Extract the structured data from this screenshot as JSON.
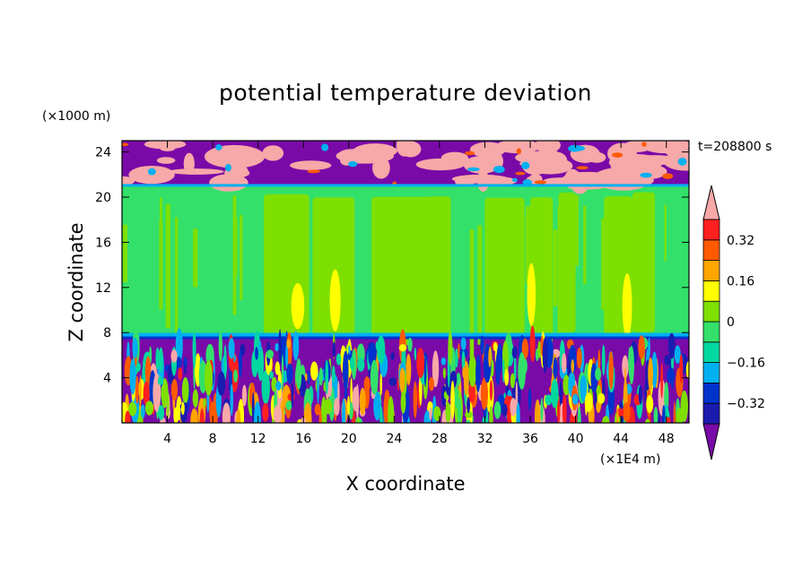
{
  "chart_data": {
    "type": "heatmap",
    "title": "potential temperature deviation",
    "xlabel": "X coordinate",
    "ylabel": "Z coordinate",
    "x_unit": "(×1E4 m)",
    "y_unit": "(×1000 m)",
    "time_label": "t=208800 s",
    "xlim": [
      0,
      50
    ],
    "ylim": [
      0,
      25
    ],
    "x_ticks": [
      "4",
      "8",
      "12",
      "16",
      "20",
      "24",
      "28",
      "32",
      "36",
      "40",
      "44",
      "48"
    ],
    "x_tick_values": [
      4,
      8,
      12,
      16,
      20,
      24,
      28,
      32,
      36,
      40,
      44,
      48
    ],
    "y_ticks": [
      "4",
      "8",
      "12",
      "16",
      "20",
      "24"
    ],
    "y_tick_values": [
      4,
      8,
      12,
      16,
      20,
      24
    ],
    "colorbar": {
      "levels": [
        -0.4,
        -0.32,
        -0.24,
        -0.16,
        -0.08,
        0,
        0.08,
        0.16,
        0.24,
        0.32,
        0.4
      ],
      "tick_labels": [
        "0.32",
        "0.16",
        "0",
        "−0.16",
        "−0.32"
      ],
      "tick_values": [
        0.32,
        0.16,
        0,
        -0.16,
        -0.32
      ],
      "colors": [
        "#7a0aa8",
        "#1b1bb0",
        "#0033cc",
        "#00b0f0",
        "#00d8a0",
        "#33e06a",
        "#7ee000",
        "#ffff00",
        "#ffa500",
        "#ff5a00",
        "#ff2020",
        "#f7a8a8"
      ]
    },
    "regions": {
      "stratosphere_top": [
        21,
        25
      ],
      "troposphere_mid": [
        7.5,
        21
      ],
      "boundary_layer": [
        0,
        7.5
      ]
    }
  }
}
